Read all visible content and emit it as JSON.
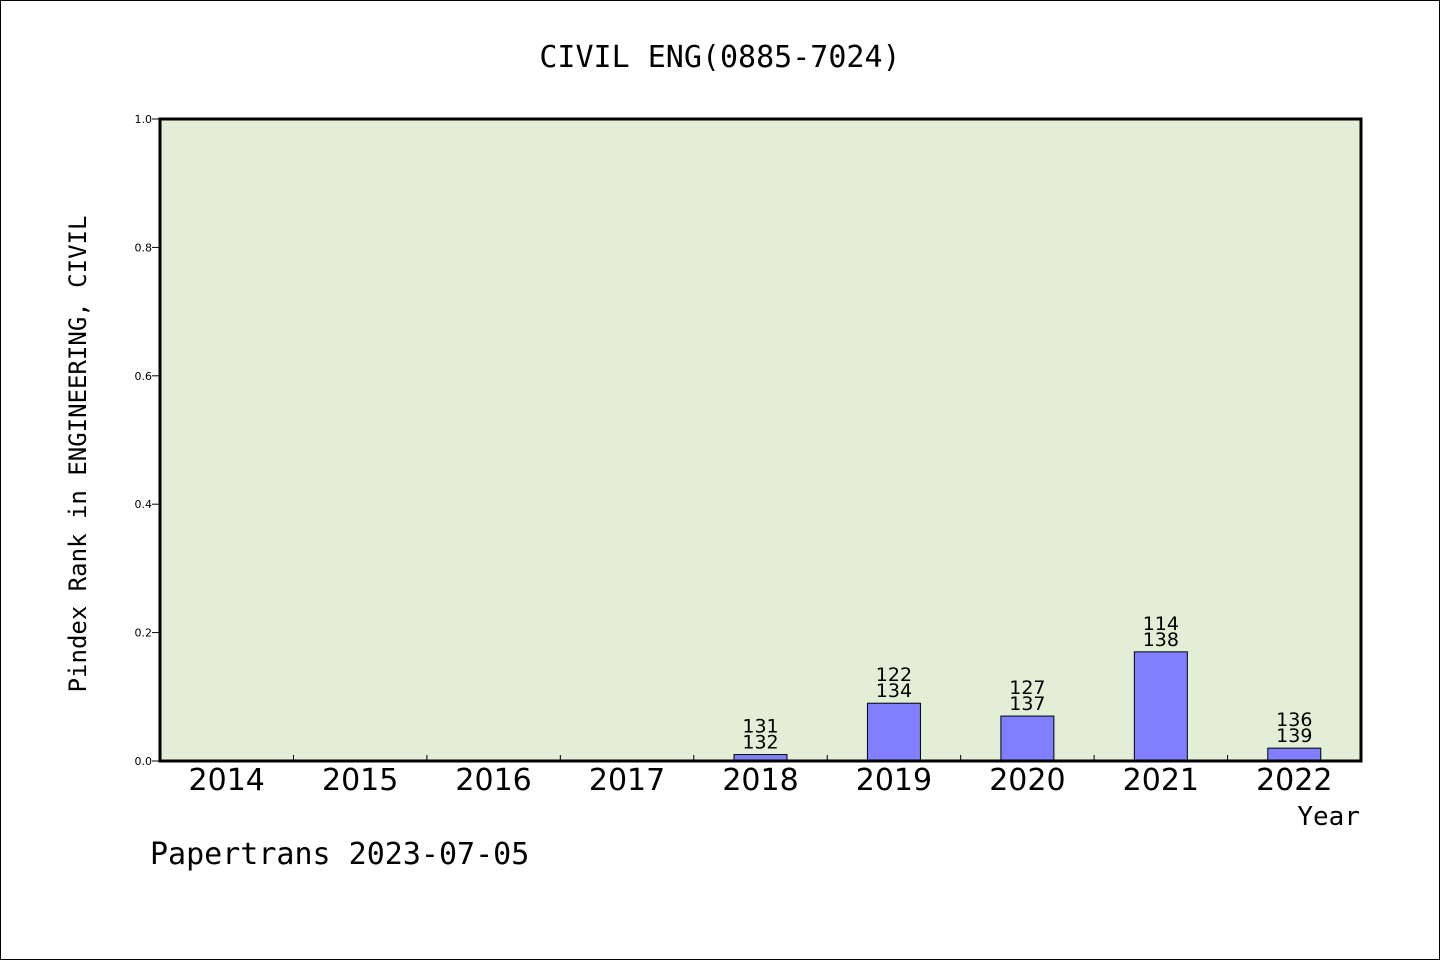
{
  "chart_data": {
    "type": "bar",
    "title": "CIVIL ENG(0885-7024)",
    "xlabel": "Year",
    "ylabel": "Pindex Rank in ENGINEERING, CIVIL",
    "ylim": [
      0,
      1.0
    ],
    "yticks": [
      "0.0",
      "0.2",
      "0.4",
      "0.6",
      "0.8",
      "1.0"
    ],
    "categories": [
      "2014",
      "2015",
      "2016",
      "2017",
      "2018",
      "2019",
      "2020",
      "2021",
      "2022"
    ],
    "values": [
      0,
      0,
      0,
      0,
      0.01,
      0.09,
      0.07,
      0.17,
      0.02
    ],
    "label_top": [
      "",
      "",
      "",
      "",
      "131",
      "122",
      "127",
      "114",
      "136"
    ],
    "label_bottom": [
      "",
      "",
      "",
      "",
      "132",
      "134",
      "137",
      "138",
      "139"
    ],
    "plot_background": "#e2efd6",
    "bar_color": "#8080ff",
    "grid": false,
    "legend": "none"
  },
  "footer": {
    "caption": "Papertrans 2023-07-05"
  }
}
